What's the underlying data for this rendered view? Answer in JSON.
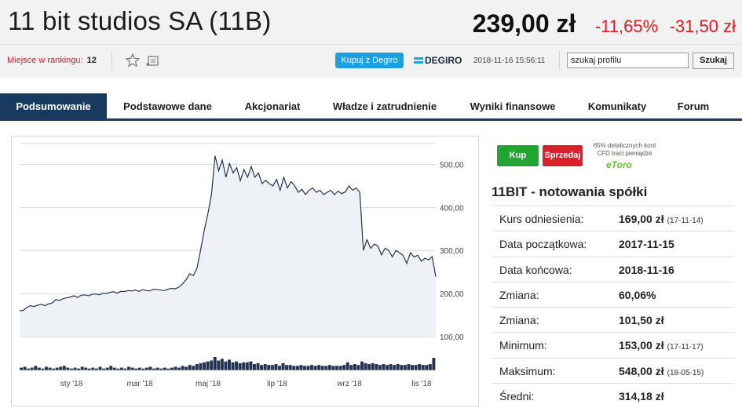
{
  "header": {
    "company": "11 bit studios SA (11B)",
    "price": "239,00 zł",
    "change_pct": "-11,65%",
    "change_abs": "-31,50 zł",
    "rank_label": "Miejsce w rankingu:",
    "rank_value": "12",
    "buy_degiro": "Kupuj z Degiro",
    "degiro_logo": "DEGIRO",
    "datetime": "2018-11-16 15:56:11",
    "search_value": "szukaj profilu",
    "search_button": "Szukaj",
    "icons": [
      "star-icon",
      "add-to-portfolio-icon"
    ]
  },
  "tabs": [
    {
      "label": "Podsumowanie",
      "active": true
    },
    {
      "label": "Podstawowe dane"
    },
    {
      "label": "Akcjonariat"
    },
    {
      "label": "Władze i zatrudnienie"
    },
    {
      "label": "Wyniki finansowe"
    },
    {
      "label": "Komunikaty"
    },
    {
      "label": "Forum"
    }
  ],
  "chart_data": {
    "type": "area",
    "y_ticks": [
      "100,00",
      "200,00",
      "300,00",
      "400,00",
      "500,00"
    ],
    "x_ticks": [
      "sty '18",
      "mar '18",
      "maj '18",
      "lip '18",
      "wrz '18",
      "lis '18"
    ],
    "ylim": [
      100,
      550
    ],
    "colors": {
      "line": "#25324f",
      "fill": "#eef1f6",
      "volume": "#25324f"
    },
    "series": [
      {
        "values": [
          160,
          161,
          168,
          172,
          170,
          173,
          175,
          172,
          176,
          178,
          186,
          184,
          188,
          190,
          192,
          195,
          191,
          196,
          197,
          195,
          198,
          199,
          197,
          201,
          200,
          203,
          204,
          201,
          205,
          205,
          207,
          206,
          208,
          205,
          209,
          207,
          206,
          210,
          209,
          208,
          207,
          210,
          212,
          211,
          215,
          222,
          232,
          246,
          242,
          258,
          300,
          345,
          385,
          430,
          520,
          485,
          510,
          470,
          502,
          480,
          492,
          462,
          488,
          470,
          495,
          470,
          480,
          455,
          463,
          455,
          450,
          465,
          440,
          470,
          445,
          460,
          450,
          435,
          442,
          430,
          440,
          445,
          435,
          440,
          430,
          435,
          440,
          430,
          438,
          432,
          436,
          450,
          440,
          445,
          435,
          300,
          325,
          305,
          315,
          310,
          290,
          305,
          300,
          285,
          300,
          295,
          288,
          270,
          295,
          285,
          289,
          275,
          282,
          278,
          286,
          239
        ]
      }
    ],
    "volume": [
      3,
      4,
      2,
      3,
      5,
      3,
      2,
      4,
      3,
      2,
      3,
      4,
      5,
      3,
      2,
      3,
      2,
      4,
      3,
      2,
      3,
      2,
      4,
      2,
      3,
      5,
      3,
      2,
      3,
      2,
      4,
      3,
      2,
      3,
      2,
      3,
      4,
      2,
      3,
      2,
      3,
      2,
      3,
      4,
      3,
      5,
      4,
      6,
      5,
      7,
      8,
      9,
      10,
      11,
      15,
      11,
      13,
      10,
      12,
      9,
      10,
      8,
      9,
      9,
      10,
      7,
      8,
      6,
      7,
      6,
      6,
      7,
      5,
      8,
      6,
      6,
      5,
      5,
      6,
      5,
      5,
      6,
      5,
      6,
      5,
      5,
      6,
      5,
      5,
      5,
      6,
      9,
      6,
      7,
      6,
      10,
      8,
      7,
      8,
      7,
      6,
      7,
      6,
      7,
      6,
      7,
      6,
      6,
      7,
      6,
      6,
      7,
      6,
      6,
      7,
      14
    ]
  },
  "panel": {
    "buy": "Kup",
    "sell": "Sprzedaj",
    "etoro_note": "65% detalicznych kont CFD traci pieniądze",
    "etoro_logo": "eToro",
    "title": "11BIT - notowania spółki",
    "rows": [
      {
        "label": "Kurs odniesienia:",
        "value": "169,00 zł",
        "date": "(17-11-14)"
      },
      {
        "label": "Data początkowa:",
        "value": "2017-11-15",
        "date": ""
      },
      {
        "label": "Data końcowa:",
        "value": "2018-11-16",
        "date": ""
      },
      {
        "label": "Zmiana:",
        "value": "60,06%",
        "date": ""
      },
      {
        "label": "Zmiana:",
        "value": "101,50 zł",
        "date": ""
      },
      {
        "label": "Minimum:",
        "value": "153,00 zł",
        "date": "(17-11-17)"
      },
      {
        "label": "Maksimum:",
        "value": "548,00 zł",
        "date": "(18-05-15)"
      },
      {
        "label": "Średni:",
        "value": "314,18 zł",
        "date": ""
      }
    ]
  }
}
